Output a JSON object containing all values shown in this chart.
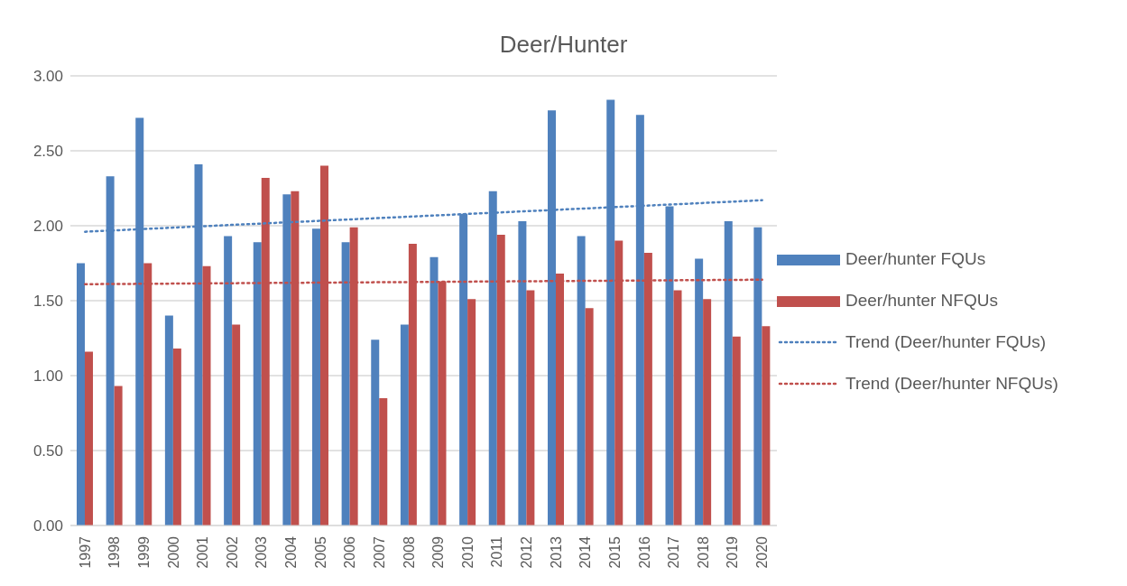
{
  "chart_data": {
    "type": "bar",
    "title": "Deer/Hunter",
    "categories": [
      "1997",
      "1998",
      "1999",
      "2000",
      "2001",
      "2002",
      "2003",
      "2004",
      "2005",
      "2006",
      "2007",
      "2008",
      "2009",
      "2010",
      "2011",
      "2012",
      "2013",
      "2014",
      "2015",
      "2016",
      "2017",
      "2018",
      "2019",
      "2020"
    ],
    "series": [
      {
        "name": "Deer/hunter FQUs",
        "color": "#4f81bd",
        "values": [
          1.75,
          2.33,
          2.72,
          1.4,
          2.41,
          1.93,
          1.89,
          2.21,
          1.98,
          1.89,
          1.24,
          1.34,
          1.79,
          2.08,
          2.23,
          2.03,
          2.77,
          1.93,
          2.84,
          2.74,
          2.13,
          1.78,
          2.03,
          1.99
        ]
      },
      {
        "name": "Deer/hunter NFQUs",
        "color": "#c0504d",
        "values": [
          1.16,
          0.93,
          1.75,
          1.18,
          1.73,
          1.34,
          2.32,
          2.23,
          2.4,
          1.99,
          0.85,
          1.88,
          1.63,
          1.51,
          1.94,
          1.57,
          1.68,
          1.45,
          1.9,
          1.82,
          1.57,
          1.51,
          1.26,
          1.33
        ]
      },
      {
        "name": "Trend (Deer/hunter FQUs)",
        "type": "line",
        "color": "#4f81bd",
        "line_style": "dotted",
        "values": [
          1.96,
          null,
          null,
          null,
          null,
          null,
          null,
          null,
          null,
          null,
          null,
          null,
          null,
          null,
          null,
          null,
          null,
          null,
          null,
          null,
          null,
          null,
          null,
          2.17
        ]
      },
      {
        "name": "Trend (Deer/hunter NFQUs)",
        "type": "line",
        "color": "#c0504d",
        "line_style": "dotted",
        "values": [
          1.61,
          null,
          null,
          null,
          null,
          null,
          null,
          null,
          null,
          null,
          null,
          null,
          null,
          null,
          null,
          null,
          null,
          null,
          null,
          null,
          null,
          null,
          null,
          1.64
        ]
      }
    ],
    "ylim": [
      0,
      3
    ],
    "yticks": [
      {
        "value": 0,
        "label": "0.00"
      },
      {
        "value": 0.5,
        "label": "0.50"
      },
      {
        "value": 1,
        "label": "1.00"
      },
      {
        "value": 1.5,
        "label": "1.50"
      },
      {
        "value": 2,
        "label": "2.00"
      },
      {
        "value": 2.5,
        "label": "2.50"
      },
      {
        "value": 3,
        "label": "3.00"
      }
    ],
    "grid": "y",
    "legend": "right",
    "marker": "none"
  }
}
